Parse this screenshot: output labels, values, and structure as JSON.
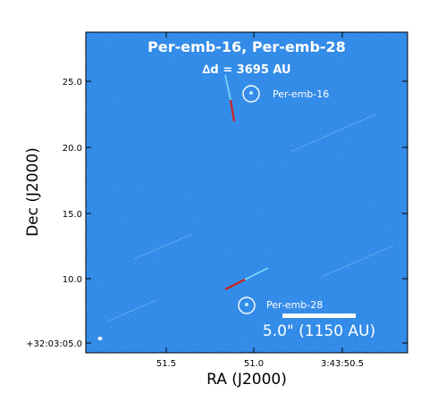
{
  "title": "Per-emb-16, Per-emb-28",
  "separation_label": "∆d = 3695 AU",
  "sources": [
    {
      "label": "Per-emb-16"
    },
    {
      "label": "Per-emb-28"
    }
  ],
  "scale_bar_label": "5.0\" (1150 AU)",
  "axes": {
    "xlabel": "RA (J2000)",
    "ylabel": "Dec (J2000)",
    "xticks": [
      "51.5",
      "51.0",
      "3:43:50.5"
    ],
    "yticks": [
      "25.0",
      "20.0",
      "15.0",
      "10.0",
      "+32:03:05.0"
    ]
  },
  "colors": {
    "map_background": "#2b83e6",
    "outflow_red": "#d0231f",
    "outflow_blue": "#7fd9f5",
    "annotation": "#ffffff"
  }
}
